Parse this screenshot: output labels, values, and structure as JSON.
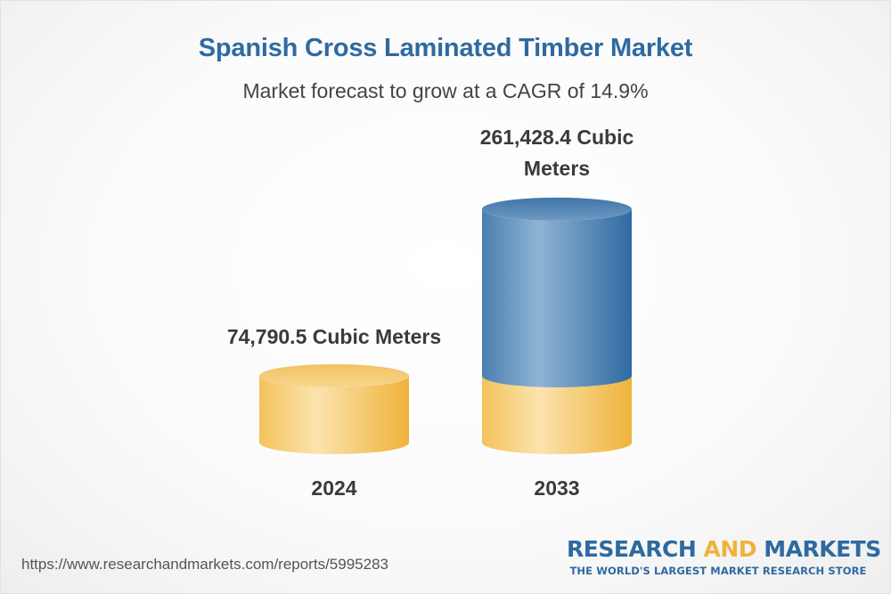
{
  "title": "Spanish Cross Laminated Timber Market",
  "subtitle": "Market forecast to grow at a CAGR of 14.9%",
  "chart_data": {
    "type": "bar",
    "title": "Spanish Cross Laminated Timber Market",
    "subtitle": "Market forecast to grow at a CAGR of 14.9%",
    "unit": "Cubic Meters",
    "categories": [
      "2024",
      "2033"
    ],
    "values": [
      74790.5,
      261428.4
    ],
    "value_labels": [
      "74,790.5 Cubic Meters",
      "261,428.4 Cubic Meters"
    ],
    "cagr": "14.9%"
  },
  "colors": {
    "title": "#2e6aa1",
    "base_gold": "#f2c15a",
    "growth_blue": "#4f86b6"
  },
  "footer": {
    "url": "https://www.researchandmarkets.com/reports/5995283",
    "brand_research": "RESEARCH",
    "brand_and": "AND",
    "brand_markets": "MARKETS",
    "brand_tagline": "THE WORLD'S LARGEST MARKET RESEARCH STORE"
  }
}
